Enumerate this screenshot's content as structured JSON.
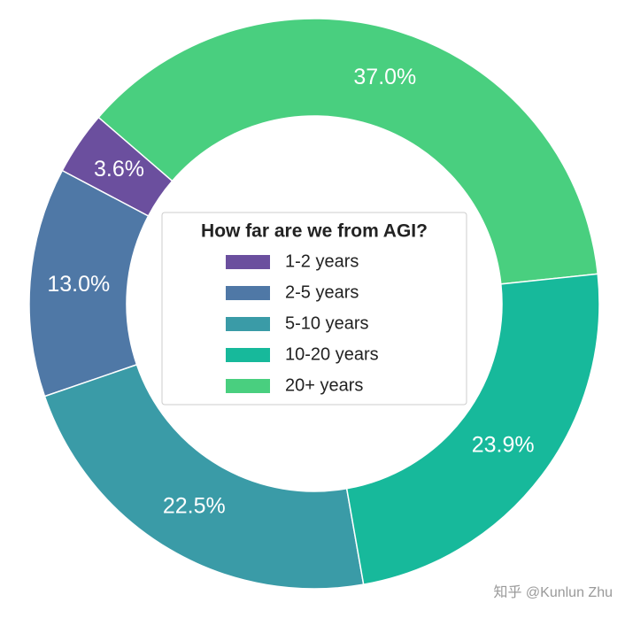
{
  "chart_data": {
    "type": "donut",
    "legend_title": "How far are we from AGI?",
    "categories": [
      "1-2 years",
      "2-5 years",
      "5-10 years",
      "10-20 years",
      "20+ years"
    ],
    "values": [
      3.6,
      13.0,
      22.5,
      23.9,
      37.0
    ],
    "value_labels": [
      "3.6%",
      "13.0%",
      "22.5%",
      "23.9%",
      "37.0%"
    ],
    "colors": [
      "#6b4f9e",
      "#4f78a6",
      "#3a9ba7",
      "#17b99b",
      "#49cf7f"
    ],
    "legend": "center"
  },
  "watermark": "知乎 @Kunlun Zhu"
}
